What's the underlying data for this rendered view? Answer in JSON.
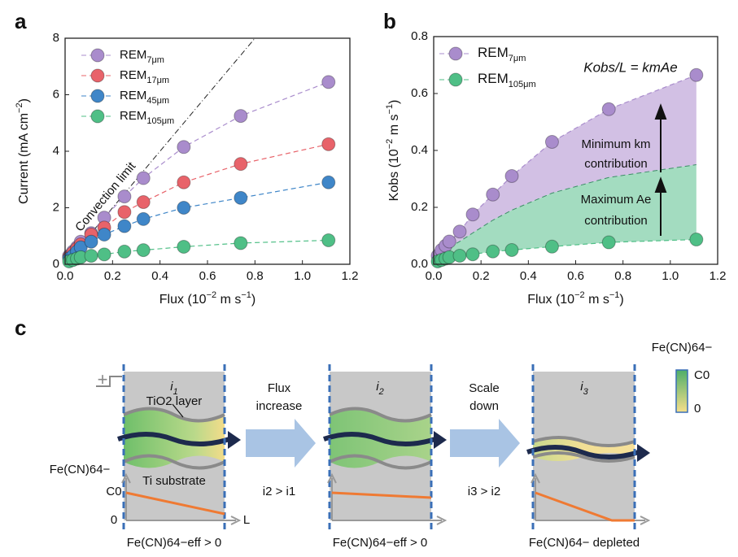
{
  "chart_data": [
    {
      "type": "scatter",
      "panel_label": "a",
      "x_label": "Flux (10−2 m s−1)",
      "y_label": "Current (mA cm−2)",
      "x": [
        0.017,
        0.033,
        0.05,
        0.066,
        0.11,
        0.165,
        0.25,
        0.33,
        0.5,
        0.74,
        1.11
      ],
      "series": [
        {
          "name": "REM7μm",
          "color": "#a98ccc",
          "values": [
            0.3,
            0.45,
            0.6,
            0.8,
            1.1,
            1.65,
            2.4,
            3.05,
            4.15,
            5.25,
            6.45
          ]
        },
        {
          "name": "REM17μm",
          "color": "#e8636a",
          "values": [
            0.25,
            0.4,
            0.55,
            0.7,
            1.05,
            1.3,
            1.85,
            2.2,
            2.9,
            3.55,
            4.25
          ]
        },
        {
          "name": "REM45μm",
          "color": "#3f86c8",
          "values": [
            0.2,
            0.3,
            0.45,
            0.6,
            0.8,
            1.05,
            1.35,
            1.6,
            2.0,
            2.35,
            2.9
          ]
        },
        {
          "name": "REM105μm",
          "color": "#4fbf86",
          "values": [
            0.1,
            0.15,
            0.2,
            0.25,
            0.3,
            0.35,
            0.45,
            0.5,
            0.62,
            0.75,
            0.85
          ]
        }
      ],
      "reference_line": {
        "name": "Convection limit",
        "x": [
          0,
          0.8
        ],
        "values": [
          0,
          8
        ]
      },
      "xlim": [
        0,
        1.2
      ],
      "ylim": [
        0,
        8
      ],
      "xticks": [
        {
          "value": 0,
          "label": "0.0"
        },
        0.2,
        0.4,
        0.6,
        0.8,
        {
          "value": 1,
          "label": "1.0"
        },
        1.2
      ],
      "yticks": [
        0,
        2,
        4,
        6,
        8
      ],
      "grid": false,
      "legend": "top-left"
    },
    {
      "type": "scatter",
      "panel_label": "b",
      "x_label": "Flux (10−2 m s−1)",
      "y_label": "Kobs (10−2 m s−1)",
      "x": [
        0.017,
        0.033,
        0.05,
        0.066,
        0.11,
        0.165,
        0.25,
        0.33,
        0.5,
        0.74,
        1.11
      ],
      "series": [
        {
          "name": "REM7μm",
          "color": "#a98ccc",
          "values": [
            0.03,
            0.05,
            0.065,
            0.08,
            0.115,
            0.175,
            0.245,
            0.31,
            0.43,
            0.545,
            0.665
          ]
        },
        {
          "name": "REM105μm",
          "color": "#4fbf86",
          "values": [
            0.01,
            0.015,
            0.02,
            0.025,
            0.03,
            0.035,
            0.045,
            0.05,
            0.062,
            0.077,
            0.087
          ]
        }
      ],
      "boundary": {
        "values": [
          0.02,
          0.035,
          0.045,
          0.06,
          0.08,
          0.11,
          0.155,
          0.19,
          0.25,
          0.305,
          0.35
        ]
      },
      "upper_fill_color": "#d2c0e4",
      "lower_fill_color": "#a3dcc0",
      "formula": "Kobs/L = kmAe",
      "upper_note": [
        "Minimum km",
        "contribution"
      ],
      "lower_note": [
        "Maximum Ae",
        "contribution"
      ],
      "xlim": [
        0,
        1.2
      ],
      "ylim": [
        0,
        0.8
      ],
      "xticks": [
        {
          "value": 0,
          "label": "0.0"
        },
        0.2,
        0.4,
        0.6,
        0.8,
        {
          "value": 1,
          "label": "1.0"
        },
        1.2
      ],
      "yticks": [
        {
          "value": 0,
          "label": "0.0"
        },
        0.2,
        0.4,
        0.6,
        0.8
      ],
      "grid": false,
      "legend": "top-left"
    }
  ],
  "diagram": {
    "panel_label": "c",
    "plus": "+",
    "panels": [
      {
        "current": "i1",
        "caption": "Fe(CN)64−eff > 0"
      },
      {
        "current": "i2",
        "caption": "Fe(CN)64−eff > 0"
      },
      {
        "current": "i3",
        "caption": "Fe(CN)64− depleted"
      }
    ],
    "oxide_label": "TiO2 layer",
    "substrate_label": "Ti substrate",
    "species": "Fe(CN)64−",
    "c0": "C0",
    "zero": "0",
    "length": "L",
    "steps": [
      {
        "lines": [
          "Flux",
          "increase"
        ],
        "relation": "i2 > i1"
      },
      {
        "lines": [
          "Scale",
          "down"
        ],
        "relation": "i3 > i2"
      }
    ],
    "colorbar": {
      "title": "Fe(CN)64−",
      "top": "C0",
      "bottom": "0"
    }
  }
}
